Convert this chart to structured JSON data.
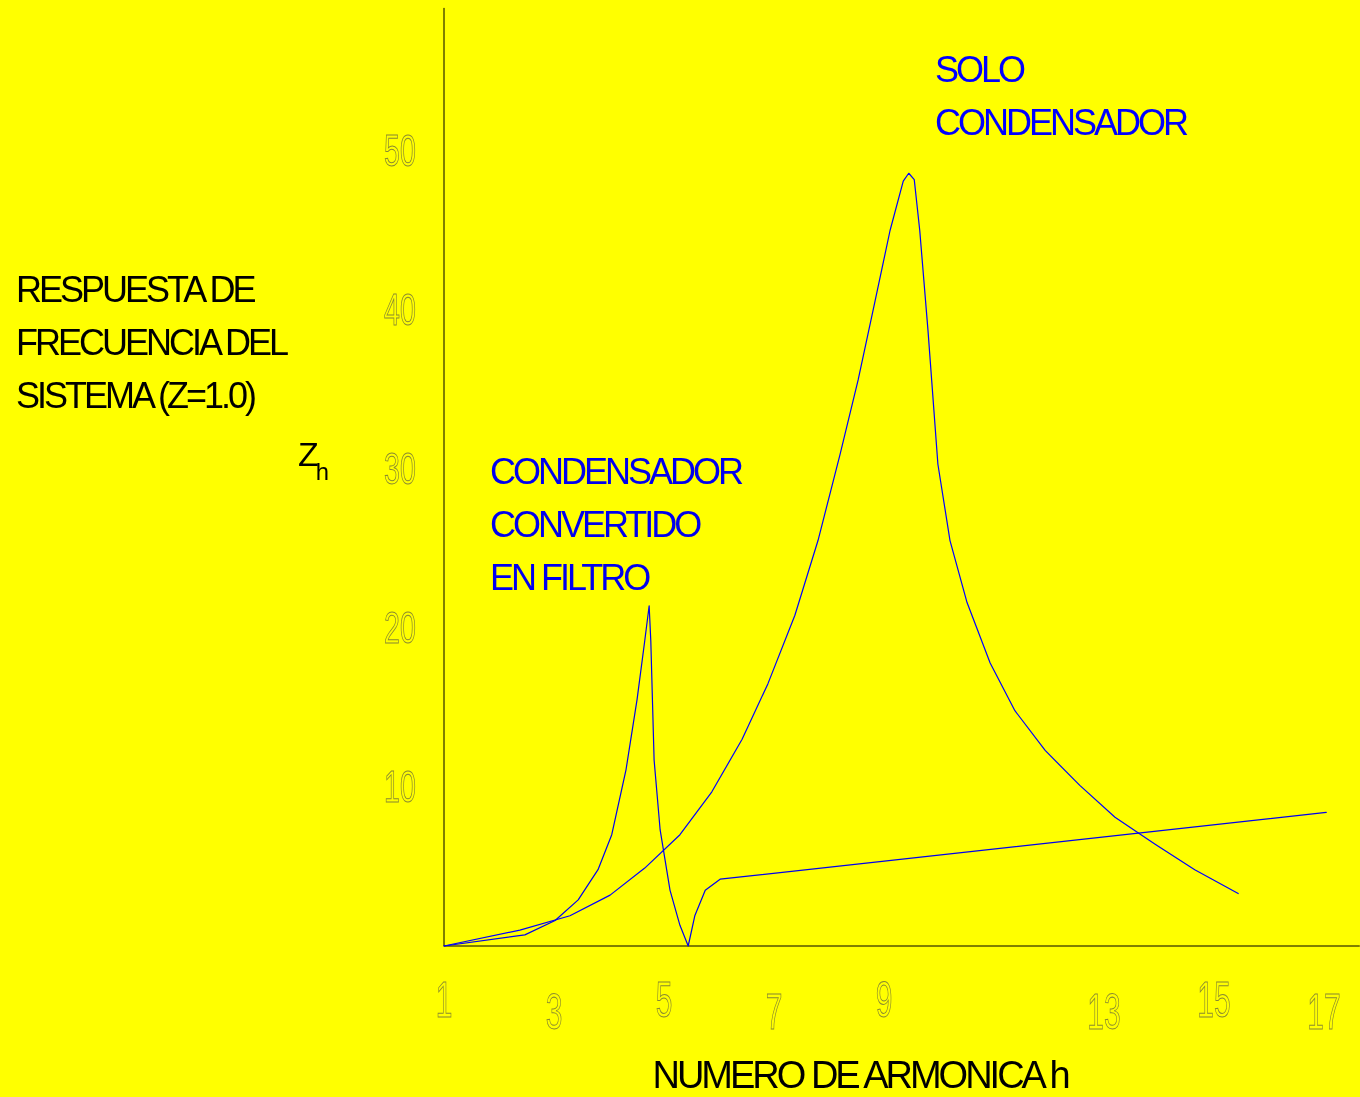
{
  "chart_data": {
    "type": "line",
    "xlabel": "NUMERO DE ARMONICA h",
    "ylabel": "RESPUESTA DE FRECUENCIA DEL SISTEMA (Z=1.0)",
    "annotations": [
      "Z$_{h}$"
    ],
    "xlim": [
      1,
      17.65
    ],
    "ylim": [
      0,
      59
    ],
    "xticks": [
      1,
      3,
      5,
      7,
      9,
      13,
      15,
      17
    ],
    "yticks": [
      10,
      20,
      30,
      40,
      50
    ],
    "grid": false,
    "marker": "none",
    "line_style": "solid",
    "series": [
      {
        "name": "SOLO CONDENSADOR",
        "color": "#0000ff",
        "x": [
          1,
          2.38,
          3.29,
          4.02,
          4.65,
          5.29,
          5.87,
          6.42,
          6.89,
          7.38,
          7.8,
          8.2,
          8.53,
          8.84,
          9.11,
          9.35,
          9.45,
          9.55,
          9.65,
          9.8,
          9.98,
          10.2,
          10.51,
          10.93,
          11.38,
          11.93,
          12.56,
          13.2,
          13.93,
          14.65,
          15.44
        ],
        "values": [
          0,
          1,
          1.9,
          3.2,
          4.9,
          7,
          9.7,
          13,
          16.5,
          20.8,
          25.5,
          30.9,
          35.6,
          40.6,
          45,
          48.1,
          48.6,
          48.2,
          45,
          38.7,
          30.3,
          25.5,
          21.6,
          17.8,
          14.8,
          12.3,
          10.1,
          8.1,
          6.4,
          4.8,
          3.3
        ]
      },
      {
        "name": "CONDENSADOR CONVERTIDO EN FILTRO",
        "color": "#0000ee",
        "x": [
          1,
          2.47,
          3.02,
          3.44,
          3.8,
          4.05,
          4.31,
          4.51,
          4.65,
          4.73,
          4.76,
          4.82,
          4.93,
          5.11,
          5.29,
          5.44,
          5.56,
          5.75,
          6.02,
          17.04
        ],
        "values": [
          0,
          0.7,
          1.6,
          2.9,
          4.8,
          7,
          11.1,
          15.5,
          19.2,
          21.4,
          19.2,
          11.7,
          7.3,
          3.5,
          1.3,
          0,
          1.9,
          3.5,
          4.2,
          8.4
        ]
      }
    ]
  }
}
